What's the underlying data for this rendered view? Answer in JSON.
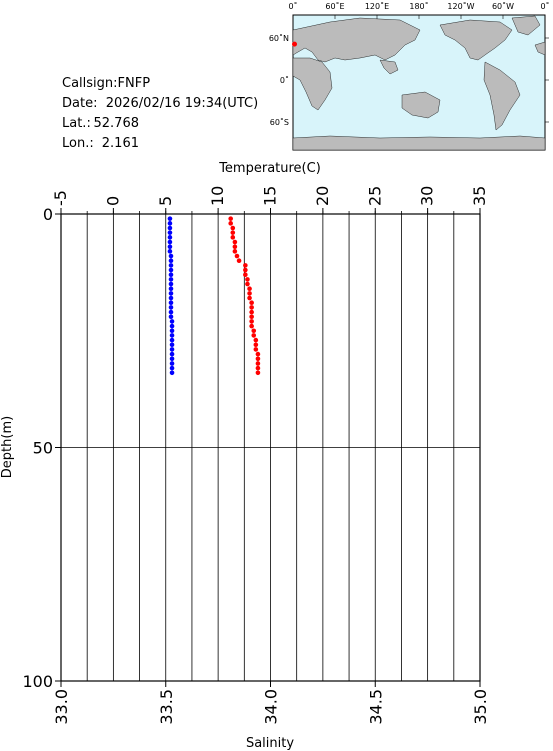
{
  "chart_data": {
    "type": "scatter",
    "info": {
      "callsign": "Callsign:FNFP",
      "date": "Date:  2026/02/16 19:34(UTC)",
      "lat_label": "Lat.:",
      "lat": 52.768,
      "lon_label": "Lon.:",
      "lon": 2.161
    },
    "map": {
      "lon_labels": [
        "0˚",
        "60˚E",
        "120˚E",
        "180˚",
        "120˚W",
        "60˚W",
        "0˚"
      ],
      "lat_labels": [
        "60˚N",
        "0˚",
        "60˚S"
      ],
      "marker_color": "#ff0000"
    },
    "xlabel": "Temperature(C)",
    "x2label": "Salinity",
    "ylabel": "Depth(m)",
    "xlim": [
      -5,
      35
    ],
    "xticks": [
      -5,
      0,
      5,
      10,
      15,
      20,
      25,
      30,
      35
    ],
    "xgrid": [
      -2.5,
      0,
      2.5,
      5,
      7.5,
      10,
      12.5,
      15,
      17.5,
      20,
      22.5,
      25,
      27.5,
      30,
      32.5
    ],
    "x2lim": [
      33,
      35
    ],
    "x2ticks": [
      {
        "value": 33,
        "label": "33.0"
      },
      33.5,
      {
        "value": 34,
        "label": "34.0"
      },
      34.5,
      {
        "value": 35,
        "label": "35.0"
      }
    ],
    "ylim": [
      0,
      100
    ],
    "yticks": [
      0,
      50,
      100
    ],
    "y_inverted": true,
    "grid": true,
    "y": [
      1,
      2,
      3,
      4,
      5,
      6,
      7,
      8,
      9,
      10,
      11,
      12,
      13,
      14,
      15,
      16,
      17,
      18,
      19,
      20,
      21,
      22,
      23,
      24,
      25,
      26,
      27,
      28,
      29,
      30,
      31,
      32,
      33,
      34
    ],
    "series": [
      {
        "axis": "x",
        "color": "#0000ff",
        "values": [
          5.4,
          5.4,
          5.4,
          5.4,
          5.4,
          5.4,
          5.4,
          5.4,
          5.5,
          5.5,
          5.5,
          5.5,
          5.5,
          5.5,
          5.5,
          5.5,
          5.5,
          5.5,
          5.5,
          5.5,
          5.5,
          5.5,
          5.6,
          5.6,
          5.6,
          5.6,
          5.6,
          5.6,
          5.6,
          5.6,
          5.6,
          5.6,
          5.6,
          5.6
        ]
      },
      {
        "axis": "x2",
        "color": "#ff0000",
        "values": [
          33.81,
          33.81,
          33.82,
          33.82,
          33.82,
          33.83,
          33.83,
          33.83,
          33.84,
          33.85,
          33.88,
          33.88,
          33.88,
          33.89,
          33.89,
          33.9,
          33.9,
          33.9,
          33.91,
          33.91,
          33.91,
          33.91,
          33.91,
          33.91,
          33.92,
          33.92,
          33.93,
          33.93,
          33.93,
          33.94,
          33.94,
          33.94,
          33.94,
          33.94
        ]
      }
    ]
  }
}
